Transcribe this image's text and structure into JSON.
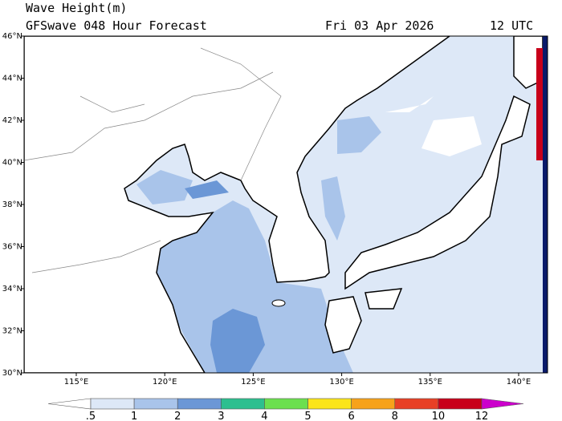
{
  "header": {
    "title": "Wave Height(m)",
    "subtitle": "GFSwave 048 Hour Forecast",
    "date": "Fri 03 Apr 2026",
    "time": "12 UTC"
  },
  "map": {
    "lat_labels": [
      "46°N",
      "44°N",
      "42°N",
      "40°N",
      "38°N",
      "36°N",
      "34°N",
      "32°N",
      "30°N"
    ],
    "lon_labels": [
      "115°E",
      "120°E",
      "125°E",
      "130°E",
      "135°E",
      "140°E"
    ]
  },
  "colorbar": {
    "labels": [
      ".5",
      "1",
      "2",
      "3",
      "4",
      "5",
      "6",
      "8",
      "10",
      "12"
    ],
    "colors": [
      "#ffffff",
      "#dde8f7",
      "#a9c4ea",
      "#6b97d6",
      "#2dbf8f",
      "#6be04f",
      "#fbe51a",
      "#f7a21a",
      "#e84025",
      "#c8001a",
      "#cc00cc"
    ]
  }
}
